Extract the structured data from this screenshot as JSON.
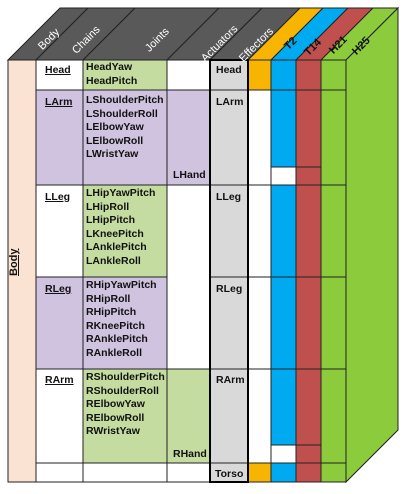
{
  "headers": {
    "body": "Body",
    "chains": "Chains",
    "joints": "Joints",
    "actuators": "Actuators",
    "effectors": "Effectors",
    "models": [
      "T2",
      "T14",
      "H21",
      "H25"
    ]
  },
  "body_label": "Body",
  "chains": [
    {
      "name": "Head",
      "joints": [
        "HeadYaw",
        "HeadPitch"
      ],
      "actuator": "",
      "effector": "Head"
    },
    {
      "name": "LArm",
      "joints": [
        "LShoulderPitch",
        "LShoulderRoll",
        "LElbowYaw",
        "LElbowRoll",
        "LWristYaw"
      ],
      "actuator": "LHand",
      "effector": "LArm"
    },
    {
      "name": "LLeg",
      "joints": [
        "LHipYawPitch",
        "LHipRoll",
        "LHipPitch",
        "LKneePitch",
        "LAnklePitch",
        "LAnkleRoll"
      ],
      "actuator": "",
      "effector": "LLeg"
    },
    {
      "name": "RLeg",
      "joints": [
        "RHipYawPitch",
        "RHipRoll",
        "RHipPitch",
        "RKneePitch",
        "RAnklePitch",
        "RAnkleRoll"
      ],
      "actuator": "",
      "effector": "RLeg"
    },
    {
      "name": "RArm",
      "joints": [
        "RShoulderPitch",
        "RShoulderRoll",
        "RElbowYaw",
        "RElbowRoll",
        "RWristYaw"
      ],
      "actuator": "RHand",
      "effector": "RArm"
    }
  ],
  "torso_label": "Torso",
  "colors": {
    "body_fill": "#fbe3d3",
    "green_fill": "#c5dca0",
    "purple_fill": "#d0c3e0",
    "effector_fill": "#d9d9d9",
    "header_fill": "#595959",
    "t2": "#f7b400",
    "t14": "#00aaf0",
    "h21": "#c0504d",
    "h25": "#8ccc3c"
  }
}
